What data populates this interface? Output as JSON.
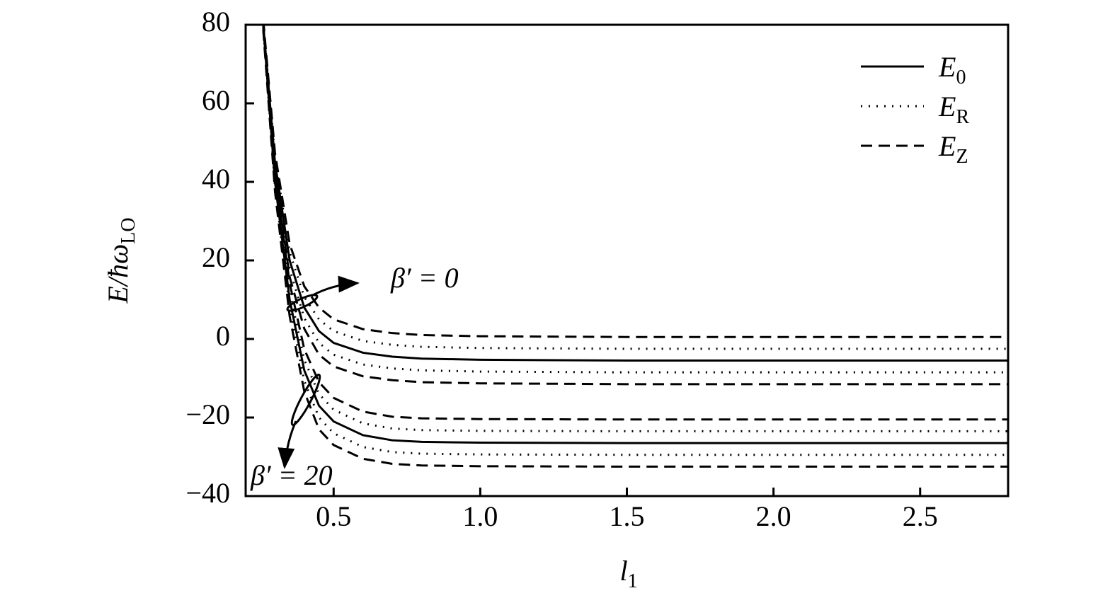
{
  "chart_data": {
    "type": "line",
    "xlabel": {
      "text": "l",
      "sub": "1"
    },
    "ylabel": {
      "text": "E/ħω",
      "sub": "LO"
    },
    "xlim": [
      0.2,
      2.8
    ],
    "ylim": [
      -40,
      80
    ],
    "xticks": [
      0.5,
      {
        "value": 1,
        "label": "1.0"
      },
      1.5,
      {
        "value": 2,
        "label": "2.0"
      },
      2.5
    ],
    "yticks": [
      {
        "value": -40,
        "label": "−40"
      },
      {
        "value": -20,
        "label": "−20"
      },
      0,
      20,
      40,
      60,
      80
    ],
    "legend_position": "upper right",
    "legend": [
      {
        "label": "E",
        "sub": "0",
        "style": "solid"
      },
      {
        "label": "E",
        "sub": "R",
        "style": "dotted"
      },
      {
        "label": "E",
        "sub": "Z",
        "style": "dashed"
      }
    ],
    "annotations": [
      "β′ = 0",
      "β′ = 20"
    ],
    "x": [
      0.26,
      0.3,
      0.35,
      0.4,
      0.45,
      0.5,
      0.6,
      0.7,
      0.8,
      1.0,
      1.5,
      2.0,
      2.5,
      2.8
    ],
    "series": [
      {
        "legend": 2,
        "color": "#000000",
        "values": [
          81.2,
          47.4,
          24.2,
          13.4,
          8,
          5,
          2.5,
          1.5,
          1,
          0.7,
          0.5,
          0.5,
          0.5,
          0.5
        ]
      },
      {
        "legend": 1,
        "color": "#000000",
        "values": [
          80.6,
          46.2,
          22.1,
          10.7,
          5,
          2,
          -0.5,
          -1.5,
          -2,
          -2.3,
          -2.5,
          -2.5,
          -2.5,
          -2.5
        ]
      },
      {
        "legend": 0,
        "color": "#000000",
        "values": [
          80,
          45,
          20,
          8,
          2,
          -1,
          -3.5,
          -4.5,
          -5,
          -5.3,
          -5.5,
          -5.5,
          -5.5,
          -5.5
        ]
      },
      {
        "legend": 1,
        "color": "#000000",
        "values": [
          79.4,
          43.8,
          17.9,
          5.3,
          -1,
          -4,
          -6.5,
          -7.5,
          -8,
          -8.3,
          -8.5,
          -8.5,
          -8.5,
          -8.5
        ]
      },
      {
        "legend": 2,
        "color": "#000000",
        "values": [
          78.8,
          42.6,
          15.8,
          2.6,
          -4,
          -7,
          -9.5,
          -10.5,
          -11,
          -11.3,
          -11.5,
          -11.5,
          -11.5,
          -11.5
        ]
      },
      {
        "legend": 2,
        "color": "#000000",
        "values": [
          81.2,
          42.4,
          14.2,
          -2.6,
          -11,
          -15,
          -18.5,
          -19.8,
          -20.2,
          -20.4,
          -20.5,
          -20.5,
          -20.5,
          -20.5
        ]
      },
      {
        "legend": 1,
        "color": "#000000",
        "values": [
          80.6,
          41.2,
          12.1,
          -5.3,
          -14,
          -18,
          -21.5,
          -22.8,
          -23.2,
          -23.4,
          -23.5,
          -23.5,
          -23.5,
          -23.5
        ]
      },
      {
        "legend": 0,
        "color": "#000000",
        "values": [
          80,
          40,
          10,
          -8,
          -17,
          -21,
          -24.5,
          -25.8,
          -26.2,
          -26.4,
          -26.5,
          -26.5,
          -26.5,
          -26.5
        ]
      },
      {
        "legend": 1,
        "color": "#000000",
        "values": [
          79.4,
          38.8,
          7.9,
          -10.7,
          -20,
          -24,
          -27.5,
          -28.8,
          -29.2,
          -29.4,
          -29.5,
          -29.5,
          -29.5,
          -29.5
        ]
      },
      {
        "legend": 2,
        "color": "#000000",
        "values": [
          78.8,
          37.6,
          5.8,
          -13.4,
          -23,
          -27,
          -30.5,
          -31.8,
          -32.2,
          -32.4,
          -32.5,
          -32.5,
          -32.5,
          -32.5
        ]
      }
    ]
  }
}
